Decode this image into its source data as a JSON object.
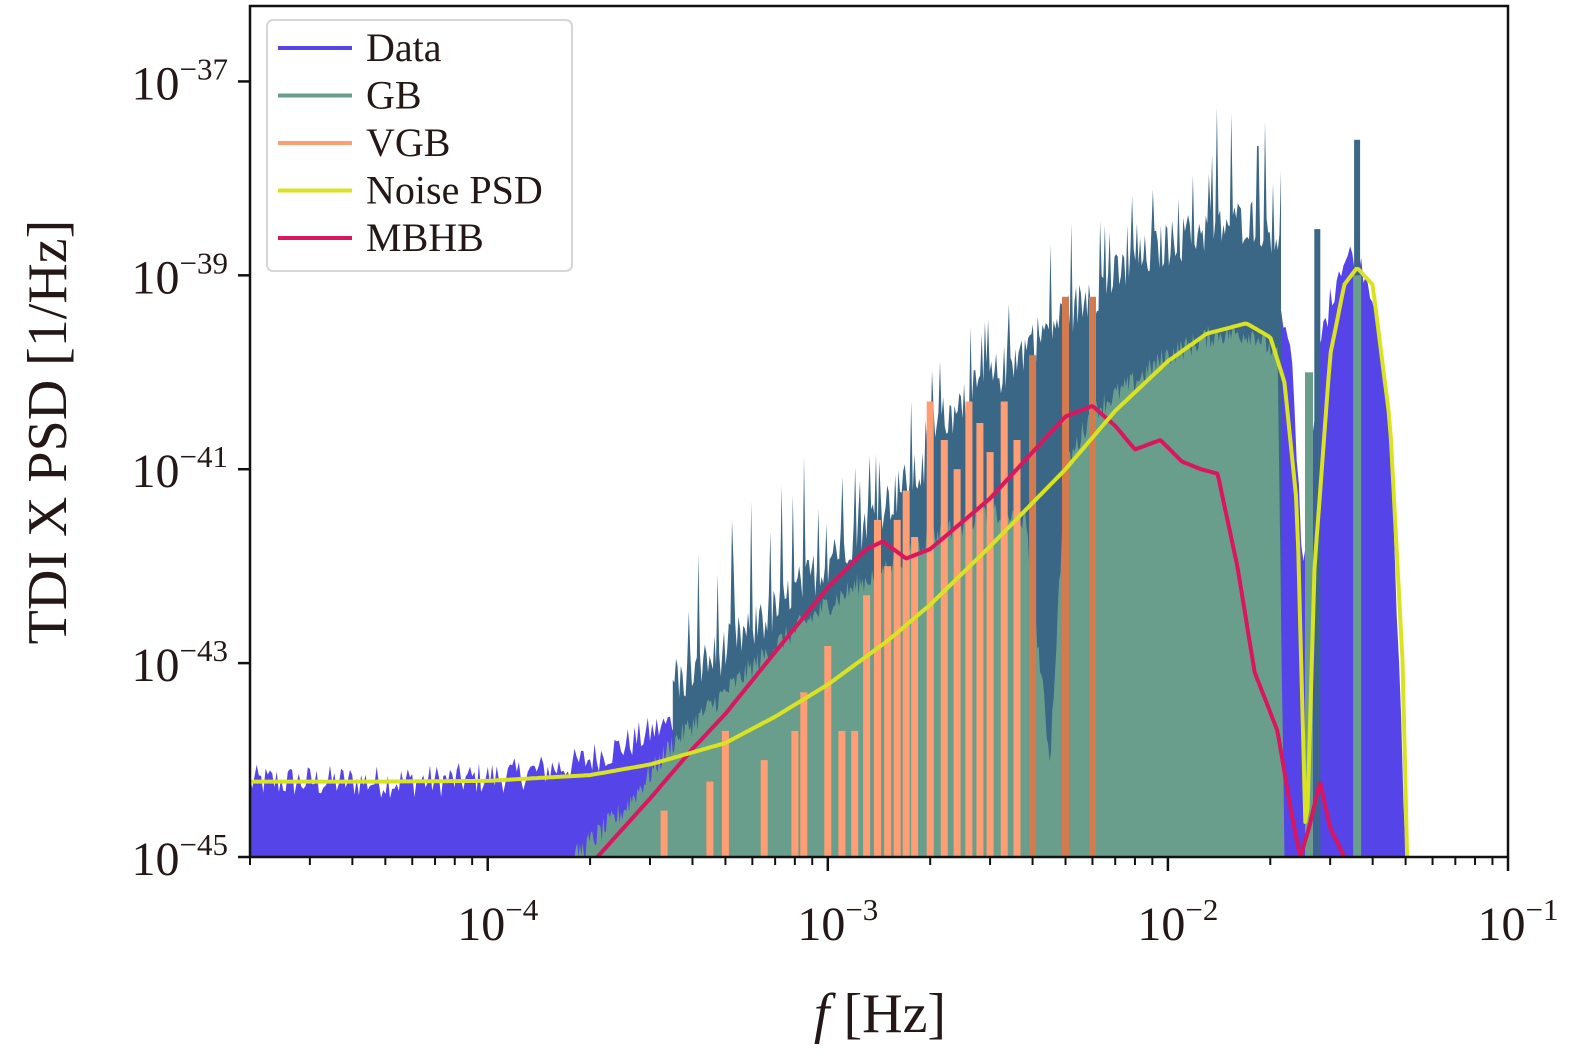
{
  "chart_data": {
    "type": "line",
    "title": "",
    "xlabel": "f [Hz]",
    "xlabel_italic_part": "f",
    "xlabel_rest": " [Hz]",
    "ylabel": "TDI X PSD [1/Hz]",
    "xscale": "log",
    "yscale": "log",
    "xlim": [
      2e-05,
      0.1
    ],
    "ylim": [
      1e-45,
      6e-37
    ],
    "grid": false,
    "legend_position": "top-left",
    "x_ticks": [
      {
        "value": 0.0001,
        "base": "10",
        "exp": "−4"
      },
      {
        "value": 0.001,
        "base": "10",
        "exp": "−3"
      },
      {
        "value": 0.01,
        "base": "10",
        "exp": "−2"
      },
      {
        "value": 0.1,
        "base": "10",
        "exp": "−1"
      }
    ],
    "y_ticks": [
      {
        "value": 1e-37,
        "base": "10",
        "exp": "−37"
      },
      {
        "value": 1e-39,
        "base": "10",
        "exp": "−39"
      },
      {
        "value": 1e-41,
        "base": "10",
        "exp": "−41"
      },
      {
        "value": 1e-43,
        "base": "10",
        "exp": "−43"
      },
      {
        "value": 1e-45,
        "base": "10",
        "exp": "−45"
      }
    ],
    "series": [
      {
        "name": "Data",
        "color": "#5544e8",
        "style": "noisy-fill",
        "x": [
          2e-05,
          3e-05,
          5e-05,
          8e-05,
          0.00012,
          0.00018,
          0.00025,
          0.00035,
          0.0005,
          0.0007,
          0.001,
          0.0015,
          0.002,
          0.003,
          0.004,
          0.006,
          0.008,
          0.01,
          0.014,
          0.018,
          0.021,
          0.023,
          0.025,
          0.026,
          0.028,
          0.032,
          0.036,
          0.04,
          0.045,
          0.05
        ],
        "y": [
          6e-45,
          6e-45,
          6e-45,
          6.2e-45,
          7e-45,
          9e-45,
          1.4e-44,
          2.5e-44,
          6e-44,
          1.5e-43,
          5e-43,
          2e-42,
          5e-42,
          1.5e-41,
          4e-41,
          1.2e-40,
          2.5e-40,
          4e-40,
          6e-40,
          7e-40,
          5e-40,
          1.5e-40,
          1e-42,
          5e-42,
          2e-40,
          1.3e-39,
          1.8e-39,
          7e-40,
          3e-41,
          1e-45
        ]
      },
      {
        "name": "GB",
        "color": "#6a9e8c",
        "style": "noisy-fill",
        "x": [
          0.00018,
          0.00025,
          0.00035,
          0.0005,
          0.0007,
          0.001,
          0.0015,
          0.002,
          0.003,
          0.0038,
          0.0045,
          0.005,
          0.006,
          0.008,
          0.01,
          0.014,
          0.018,
          0.021,
          0.022
        ],
        "y": [
          1e-45,
          3e-45,
          1.5e-44,
          5e-44,
          1.5e-43,
          4e-43,
          1e-42,
          2e-42,
          3.5e-42,
          3e-42,
          1e-44,
          1e-41,
          4e-41,
          8e-41,
          1.5e-40,
          2.5e-40,
          2.5e-40,
          1.5e-40,
          1e-45
        ],
        "peaks_x": [
          0.0015,
          0.002,
          0.003,
          0.005,
          0.007,
          0.01,
          0.013,
          0.017,
          0.02,
          0.028,
          0.036
        ],
        "peaks_y": [
          3e-41,
          1e-40,
          5e-40,
          3e-39,
          1e-38,
          2e-38,
          5e-38,
          4e-37,
          2e-38,
          2e-39,
          1e-38
        ]
      },
      {
        "name": "VGB",
        "color": "#ff9e74",
        "style": "spikes",
        "x": [
          0.00033,
          0.00045,
          0.0005,
          0.00065,
          0.0008,
          0.00085,
          0.001,
          0.0011,
          0.0012,
          0.0013,
          0.0014,
          0.0015,
          0.0016,
          0.0017,
          0.0018,
          0.002,
          0.0022,
          0.0024,
          0.0026,
          0.0028,
          0.003,
          0.0033,
          0.0036,
          0.004,
          0.005,
          0.006
        ],
        "y": [
          3e-45,
          6e-45,
          2e-44,
          1e-44,
          2e-44,
          5e-44,
          1.5e-43,
          2e-44,
          2e-44,
          5e-43,
          3e-42,
          1e-42,
          3e-42,
          6e-42,
          2e-42,
          5e-41,
          2e-41,
          1e-41,
          5e-41,
          3e-41,
          1.5e-41,
          5e-41,
          2e-41,
          1.5e-40,
          6e-40,
          6e-40
        ]
      },
      {
        "name": "Noise PSD",
        "color": "#d9e322",
        "style": "line",
        "x": [
          2e-05,
          5e-05,
          0.0001,
          0.0002,
          0.0003,
          0.0005,
          0.0007,
          0.001,
          0.0015,
          0.002,
          0.003,
          0.004,
          0.005,
          0.007,
          0.01,
          0.013,
          0.017,
          0.02,
          0.022,
          0.024,
          0.0255,
          0.027,
          0.03,
          0.033,
          0.036,
          0.04,
          0.045,
          0.049,
          0.0505
        ],
        "y": [
          6e-45,
          6e-45,
          6.1e-45,
          7e-45,
          9e-45,
          1.5e-44,
          2.8e-44,
          6e-44,
          1.7e-43,
          4e-43,
          1.6e-42,
          4.5e-42,
          1e-41,
          4e-41,
          1.3e-40,
          2.5e-40,
          3.2e-40,
          2.3e-40,
          8e-41,
          4e-42,
          1e-45,
          1e-42,
          1.5e-40,
          8e-40,
          1.2e-39,
          8e-40,
          3e-41,
          1e-43,
          1e-45
        ]
      },
      {
        "name": "MBHB",
        "color": "#d9165e",
        "style": "line",
        "x": [
          0.00021,
          0.0003,
          0.0004,
          0.0005,
          0.0007,
          0.001,
          0.0013,
          0.00145,
          0.0017,
          0.002,
          0.003,
          0.004,
          0.005,
          0.006,
          0.007,
          0.008,
          0.0095,
          0.011,
          0.0125,
          0.014,
          0.016,
          0.018,
          0.021,
          0.023,
          0.0245,
          0.026,
          0.028,
          0.03,
          0.033
        ],
        "y": [
          1e-45,
          4e-45,
          1.3e-44,
          3e-44,
          1.3e-43,
          6e-43,
          1.5e-42,
          1.8e-42,
          1.2e-42,
          1.5e-42,
          5e-42,
          1.5e-41,
          3.5e-41,
          4.5e-41,
          2.8e-41,
          1.6e-41,
          2e-41,
          1.2e-41,
          1e-41,
          9e-42,
          1e-42,
          8e-44,
          2e-44,
          3e-45,
          1e-45,
          2e-45,
          6e-45,
          2e-45,
          1e-45
        ]
      }
    ]
  }
}
